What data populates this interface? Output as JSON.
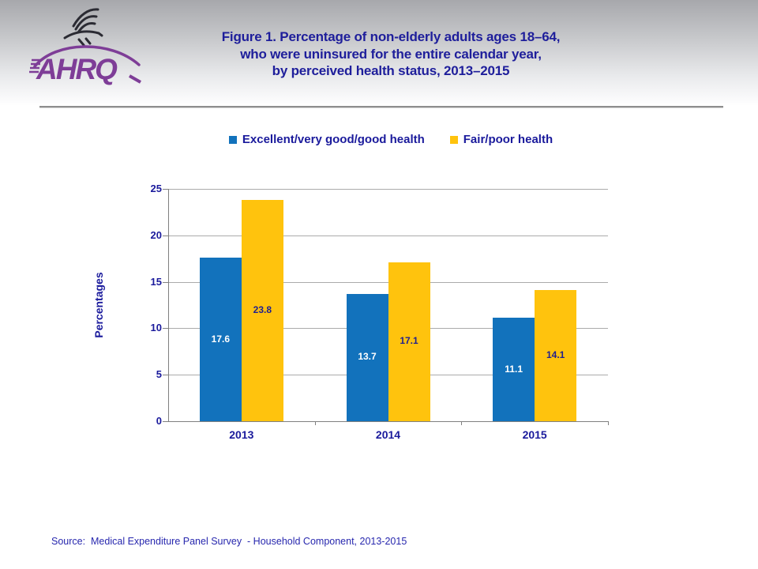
{
  "header": {
    "logo": {
      "org": "AHRQ",
      "eagle_icon": "hhs-eagle-icon"
    },
    "title_lines": [
      "Figure 1. Percentage of non-elderly adults ages 18–64,",
      "who were uninsured for the entire calendar year,",
      "by perceived health status, 2013–2015"
    ]
  },
  "chart_data": {
    "type": "bar",
    "categories": [
      "2013",
      "2014",
      "2015"
    ],
    "series": [
      {
        "name": "Excellent/very good/good health",
        "color": "#1272BC",
        "value_label_color": "#ffffff",
        "values": [
          17.6,
          13.7,
          11.1
        ]
      },
      {
        "name": "Fair/poor health",
        "color": "#FFC30D",
        "value_label_color": "#1f1f8f",
        "values": [
          23.8,
          17.1,
          14.1
        ]
      }
    ],
    "ylabel": "Percentages",
    "xlabel": "",
    "ylim": [
      0,
      25
    ],
    "ytick_step": 5,
    "grid": true,
    "legend_position": "top",
    "value_labels": "inside-middle"
  },
  "footer": {
    "source": "Source:  Medical Expenditure Panel Survey  - Household Component, 2013-2015"
  },
  "colors": {
    "title_navy": "#1e1e9b",
    "axis_text_navy": "#1a1a9c",
    "source_blue": "#2727ae",
    "bar_blue": "#1272BC",
    "bar_gold": "#FFC30D",
    "logo_purple": "#7e3d97",
    "gridline_gray": "#ababab",
    "axis_gray": "#808080",
    "divider_gray": "#8e8e8e"
  }
}
